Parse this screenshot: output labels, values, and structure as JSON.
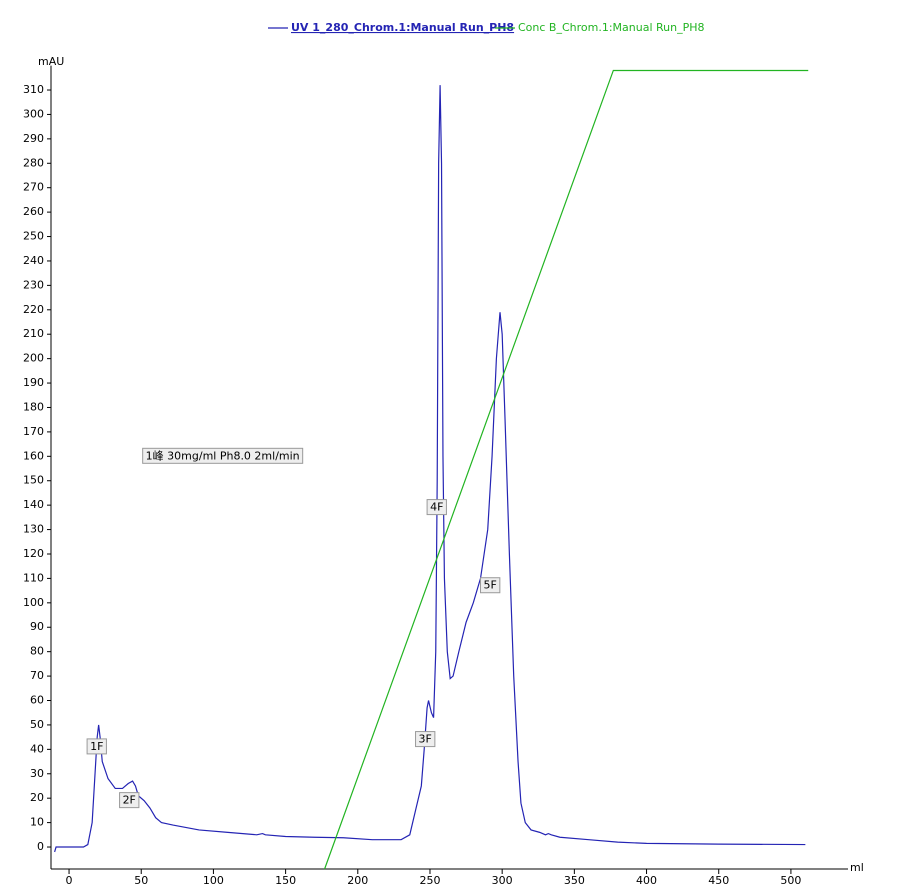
{
  "chart_data": {
    "type": "line",
    "x_label": "ml",
    "y_label": "mAU",
    "xlim": [
      -12.5,
      534
    ],
    "ylim": [
      -9,
      320
    ],
    "xticks": [
      0,
      50,
      100,
      150,
      200,
      250,
      300,
      350,
      400,
      450,
      500
    ],
    "yticks": [
      0,
      10,
      20,
      30,
      40,
      50,
      60,
      70,
      80,
      90,
      100,
      110,
      120,
      130,
      140,
      150,
      160,
      170,
      180,
      190,
      200,
      210,
      220,
      230,
      240,
      250,
      260,
      270,
      280,
      290,
      300,
      310
    ],
    "series": [
      {
        "name": "UV 1_280_Chrom.1:Manual Run_PH8",
        "color": "#2424b4",
        "x": [
          -10,
          -9,
          0,
          10,
          13,
          16,
          18,
          19.5,
          20.5,
          21.5,
          23,
          27,
          32,
          37,
          41,
          44,
          46,
          48,
          52,
          56,
          60,
          64,
          72,
          90,
          110,
          130,
          134,
          136,
          150,
          170,
          190,
          210,
          230,
          236,
          240,
          244,
          246,
          248,
          249,
          251,
          252.5,
          254,
          255,
          256,
          257,
          258,
          259,
          260,
          262,
          264,
          266,
          270,
          275,
          280,
          285,
          290,
          293,
          296,
          298.5,
          300,
          302,
          305,
          308,
          311,
          313,
          316,
          320,
          326,
          328,
          330,
          332,
          334,
          340,
          360,
          380,
          400,
          450,
          510
        ],
        "values": [
          -2,
          0,
          0,
          0,
          1,
          10,
          30,
          45,
          50,
          45,
          35,
          28,
          24,
          24,
          26,
          27,
          25,
          21,
          19,
          16,
          12,
          10,
          9,
          7,
          6,
          5,
          5.5,
          5,
          4.3,
          4,
          3.8,
          3,
          3,
          5,
          15,
          25,
          40,
          57,
          60,
          55,
          53,
          80,
          150,
          280,
          312,
          280,
          160,
          110,
          80,
          69,
          70,
          80,
          92,
          100,
          110,
          130,
          160,
          200,
          219,
          210,
          175,
          120,
          70,
          35,
          18,
          10,
          7,
          6,
          5.5,
          5,
          5.5,
          5,
          4,
          3,
          2,
          1.5,
          1.2,
          1
        ]
      },
      {
        "name": "Conc B_Chrom.1:Manual Run_PH8",
        "color": "#22b422",
        "x": [
          177,
          377,
          512
        ],
        "values": [
          -9,
          318,
          318
        ]
      }
    ],
    "annotations": [
      {
        "text": "1F",
        "x": 12.5,
        "y": 41
      },
      {
        "text": "2F",
        "x": 35,
        "y": 19
      },
      {
        "text": "3F",
        "x": 240,
        "y": 44
      },
      {
        "text": "4F",
        "x": 248,
        "y": 139
      },
      {
        "text": "5F",
        "x": 285,
        "y": 107
      },
      {
        "text": "1峰  30mg/ml  Ph8.0  2ml/min",
        "x": 51,
        "y": 160
      }
    ]
  }
}
